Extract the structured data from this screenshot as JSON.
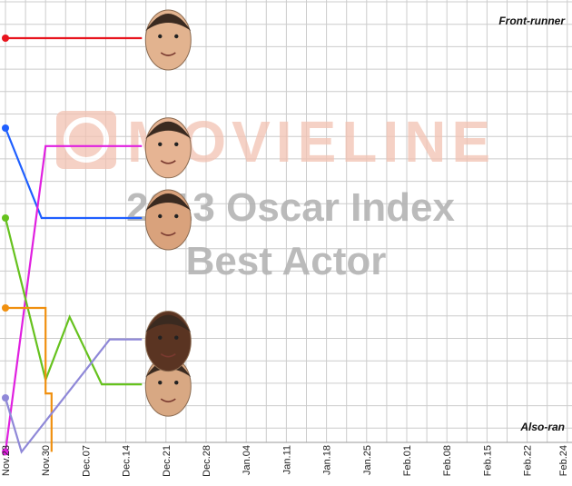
{
  "chart_data": {
    "type": "line",
    "title": "2013 Oscar Index",
    "subtitle": "Best Actor",
    "watermark": "MOVIELINE",
    "labels": {
      "top": "Front-runner",
      "bottom": "Also-ran"
    },
    "x_ticks": [
      "Nov.23",
      "Nov.30",
      "Dec.07",
      "Dec.14",
      "Dec.21",
      "Dec.28",
      "Jan.04",
      "Jan.11",
      "Jan.18",
      "Jan.25",
      "Feb.01",
      "Feb.08",
      "Feb.15",
      "Feb.22",
      "Feb.24"
    ],
    "grid": true,
    "colors": {
      "grid": "#cccccc",
      "watermark": "#f2c2b2",
      "title_watermark": "#b4b4b4"
    },
    "series": [
      {
        "color": "#e8141e",
        "points": [
          [
            0,
            1
          ],
          [
            3.4,
            1
          ]
        ],
        "face": "face-1",
        "face_color": "#e2b38f"
      },
      {
        "color": "#1f5fff",
        "points": [
          [
            0,
            2
          ],
          [
            0.9,
            3
          ],
          [
            3.4,
            3
          ]
        ],
        "face": "face-3",
        "face_color": "#d9a27c"
      },
      {
        "color": "#e020e0",
        "points": [
          [
            0,
            5.6
          ],
          [
            1.0,
            2.2
          ],
          [
            3.4,
            2.2
          ]
        ],
        "face": "face-2",
        "face_color": "#e6b493"
      },
      {
        "color": "#66c21e",
        "points": [
          [
            0,
            3
          ],
          [
            1.0,
            4.8
          ],
          [
            1.6,
            4.1
          ],
          [
            2.4,
            4.85
          ],
          [
            3.4,
            4.85
          ]
        ],
        "face": "face-5",
        "face_color": "#d8a883"
      },
      {
        "color": "#f09010",
        "points": [
          [
            0,
            4
          ],
          [
            1.0,
            4
          ],
          [
            1.0,
            4.95
          ],
          [
            1.15,
            4.95
          ],
          [
            1.15,
            5.6
          ]
        ],
        "face": null
      },
      {
        "color": "#8f88d8",
        "points": [
          [
            0,
            5
          ],
          [
            0.4,
            5.6
          ],
          [
            2.6,
            4.35
          ],
          [
            3.4,
            4.35
          ]
        ],
        "face": "face-4",
        "face_color": "#5a3422"
      }
    ]
  }
}
